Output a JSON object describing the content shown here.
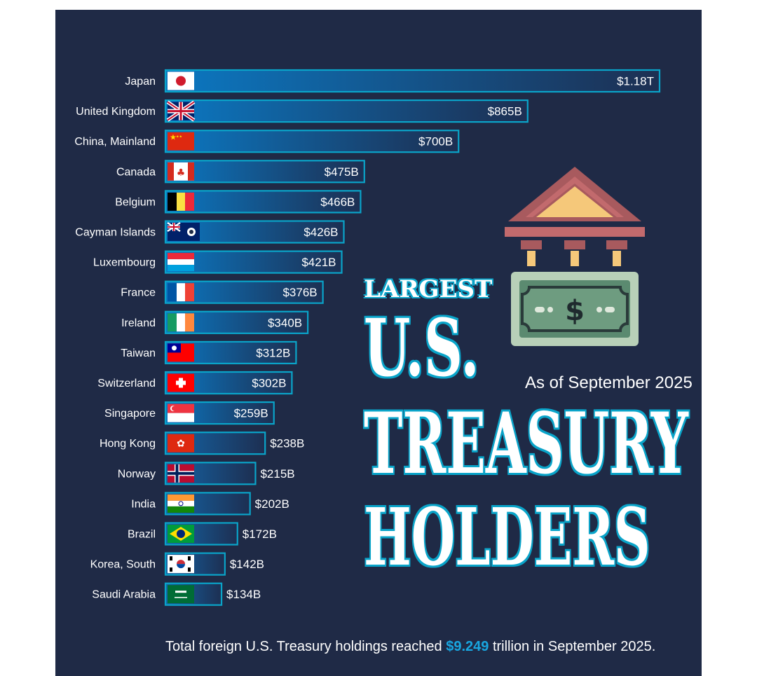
{
  "chart_data": {
    "type": "bar",
    "orientation": "horizontal",
    "unit": "USD billions",
    "title": "LARGEST U.S. TREASURY HOLDERS",
    "categories": [
      "Japan",
      "United Kingdom",
      "China, Mainland",
      "Canada",
      "Belgium",
      "Cayman Islands",
      "Luxembourg",
      "France",
      "Ireland",
      "Taiwan",
      "Switzerland",
      "Singapore",
      "Hong Kong",
      "Norway",
      "India",
      "Brazil",
      "Korea, South",
      "Saudi Arabia"
    ],
    "values": [
      1180,
      865,
      700,
      475,
      466,
      426,
      421,
      376,
      340,
      312,
      302,
      259,
      238,
      215,
      202,
      172,
      142,
      134
    ],
    "value_labels": [
      "$1.18T",
      "$865B",
      "$700B",
      "$475B",
      "$466B",
      "$426B",
      "$421B",
      "$376B",
      "$340B",
      "$312B",
      "$302B",
      "$259B",
      "$238B",
      "$215B",
      "$202B",
      "$172B",
      "$142B",
      "$134B"
    ],
    "flags": [
      "japan-flag-icon",
      "united-kingdom-flag-icon",
      "china-flag-icon",
      "canada-flag-icon",
      "belgium-flag-icon",
      "cayman-islands-flag-icon",
      "luxembourg-flag-icon",
      "france-flag-icon",
      "ireland-flag-icon",
      "taiwan-flag-icon",
      "switzerland-flag-icon",
      "singapore-flag-icon",
      "hong-kong-flag-icon",
      "norway-flag-icon",
      "india-flag-icon",
      "brazil-flag-icon",
      "south-korea-flag-icon",
      "saudi-arabia-flag-icon"
    ],
    "xlim": [
      0,
      1180
    ]
  },
  "title": {
    "line1": "LARGEST",
    "line2": "U.S.",
    "line3": "TREASURY",
    "line4": "HOLDERS"
  },
  "subtitle": "As of September 2025",
  "footnote": {
    "prefix": "Total foreign U.S. Treasury holdings reached ",
    "highlight": "$9.249",
    "suffix": " trillion in September 2025."
  },
  "colors": {
    "background": "#1f2a46",
    "bar_border": "#0aa4c9",
    "bar_fill": "#0d72b8",
    "highlight": "#19a6e0"
  }
}
